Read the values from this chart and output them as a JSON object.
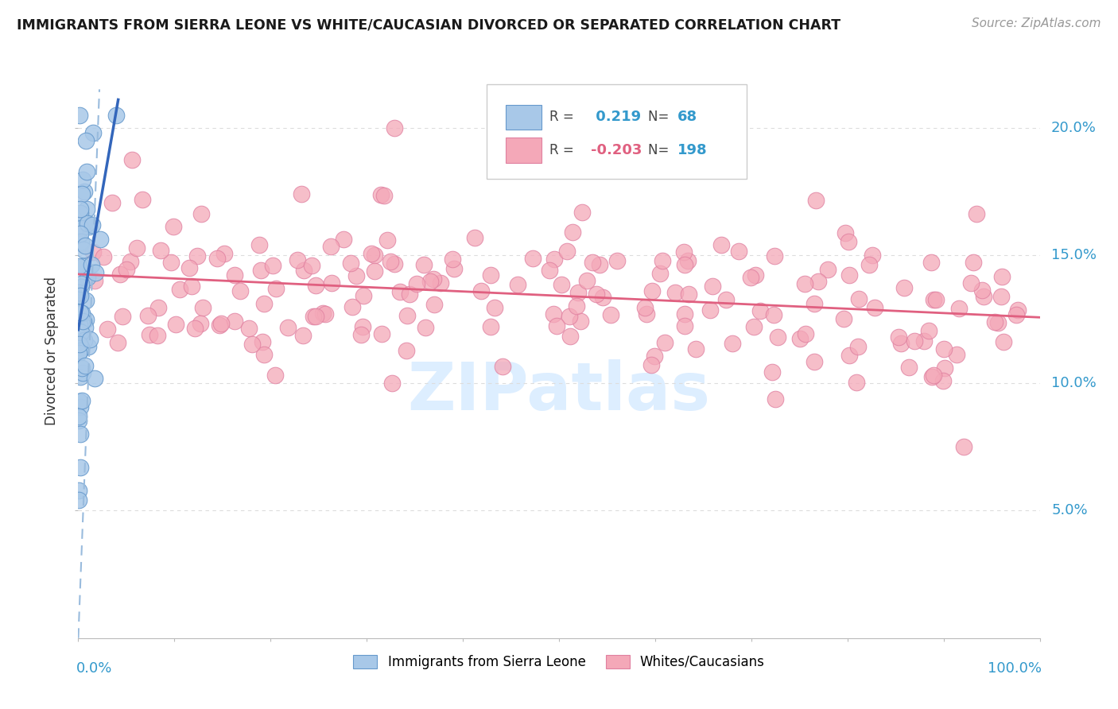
{
  "title": "IMMIGRANTS FROM SIERRA LEONE VS WHITE/CAUCASIAN DIVORCED OR SEPARATED CORRELATION CHART",
  "source": "Source: ZipAtlas.com",
  "ylabel": "Divorced or Separated",
  "blue_R": 0.219,
  "blue_N": 68,
  "pink_R": -0.203,
  "pink_N": 198,
  "blue_color": "#a8c8e8",
  "blue_edge_color": "#6699cc",
  "blue_line_color": "#3366bb",
  "pink_color": "#f4a8b8",
  "pink_edge_color": "#e080a0",
  "pink_line_color": "#e06080",
  "dashed_line_color": "#99bbdd",
  "title_color": "#1a1a1a",
  "axis_label_color": "#3399cc",
  "source_color": "#999999",
  "watermark_color": "#ddeeff",
  "grid_color": "#dddddd",
  "xlim": [
    0.0,
    1.0
  ],
  "ylim": [
    0.0,
    0.225
  ],
  "ytick_positions": [
    0.05,
    0.1,
    0.15,
    0.2
  ],
  "ytick_labels": [
    "5.0%",
    "10.0%",
    "15.0%",
    "20.0%"
  ],
  "blue_seed": 77,
  "pink_seed": 42
}
